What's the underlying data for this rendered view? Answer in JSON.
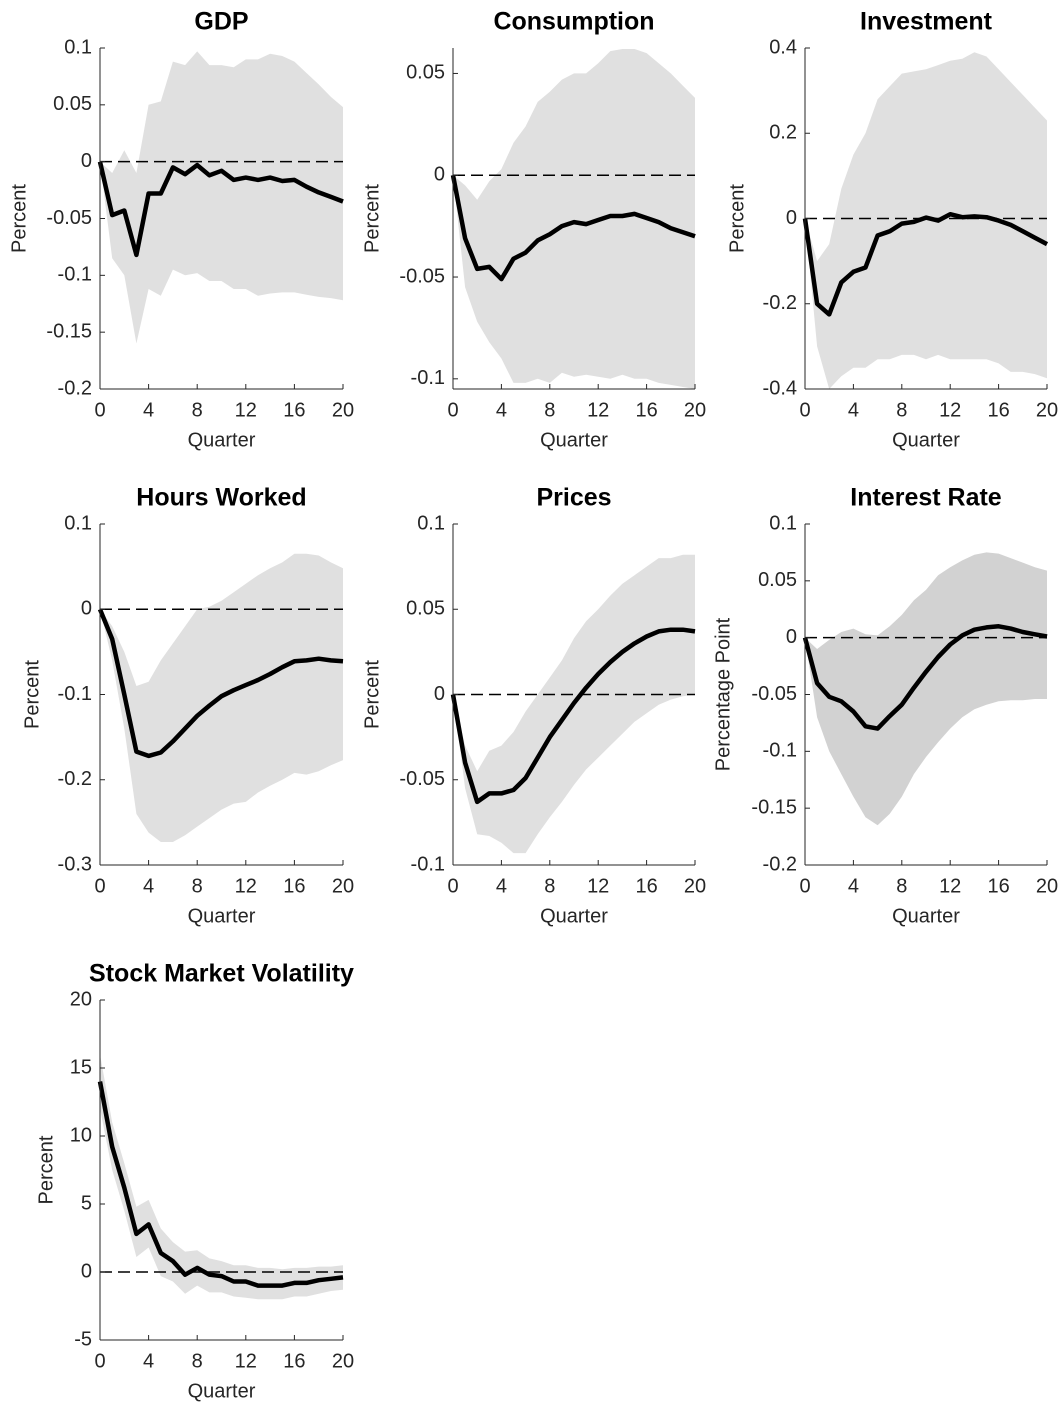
{
  "chart_data": [
    {
      "type": "line",
      "title": "GDP",
      "xlabel": "Quarter",
      "ylabel": "Percent",
      "x": [
        0,
        1,
        2,
        3,
        4,
        5,
        6,
        7,
        8,
        9,
        10,
        11,
        12,
        13,
        14,
        15,
        16,
        17,
        18,
        19,
        20
      ],
      "values": [
        0,
        -0.047,
        -0.043,
        -0.082,
        -0.028,
        -0.028,
        -0.005,
        -0.011,
        -0.003,
        -0.012,
        -0.008,
        -0.016,
        -0.014,
        -0.016,
        -0.014,
        -0.017,
        -0.016,
        -0.022,
        -0.027,
        -0.031,
        -0.035
      ],
      "upper": [
        0,
        -0.01,
        0.01,
        -0.01,
        0.05,
        0.053,
        0.088,
        0.085,
        0.097,
        0.085,
        0.085,
        0.083,
        0.09,
        0.09,
        0.095,
        0.093,
        0.088,
        0.078,
        0.068,
        0.057,
        0.048
      ],
      "lower": [
        0,
        -0.085,
        -0.1,
        -0.16,
        -0.112,
        -0.118,
        -0.095,
        -0.1,
        -0.098,
        -0.105,
        -0.105,
        -0.112,
        -0.112,
        -0.118,
        -0.116,
        -0.115,
        -0.115,
        -0.117,
        -0.119,
        -0.12,
        -0.122
      ],
      "color": "#000000",
      "band_color": "#e0e0e0",
      "reference_line": 0,
      "xlim": [
        0,
        20
      ],
      "xticks": [
        0,
        4,
        8,
        12,
        16,
        20
      ],
      "ylim": [
        -0.2,
        0.1
      ],
      "yticks": [
        -0.2,
        -0.15,
        -0.1,
        -0.05,
        0,
        0.05,
        0.1
      ]
    },
    {
      "type": "line",
      "title": "Consumption",
      "xlabel": "Quarter",
      "ylabel": "Percent",
      "x": [
        0,
        1,
        2,
        3,
        4,
        5,
        6,
        7,
        8,
        9,
        10,
        11,
        12,
        13,
        14,
        15,
        16,
        17,
        18,
        19,
        20
      ],
      "values": [
        0,
        -0.031,
        -0.046,
        -0.045,
        -0.051,
        -0.041,
        -0.038,
        -0.032,
        -0.029,
        -0.025,
        -0.023,
        -0.024,
        -0.022,
        -0.02,
        -0.02,
        -0.019,
        -0.021,
        -0.023,
        -0.026,
        -0.028,
        -0.03
      ],
      "upper": [
        0,
        -0.005,
        -0.012,
        -0.003,
        0.003,
        0.016,
        0.024,
        0.036,
        0.041,
        0.047,
        0.05,
        0.05,
        0.055,
        0.061,
        0.062,
        0.062,
        0.06,
        0.055,
        0.05,
        0.044,
        0.038
      ],
      "lower": [
        0,
        -0.055,
        -0.072,
        -0.082,
        -0.09,
        -0.102,
        -0.102,
        -0.1,
        -0.102,
        -0.097,
        -0.099,
        -0.098,
        -0.099,
        -0.1,
        -0.098,
        -0.1,
        -0.1,
        -0.102,
        -0.103,
        -0.104,
        -0.105
      ],
      "color": "#000000",
      "band_color": "#e0e0e0",
      "reference_line": 0,
      "xlim": [
        0,
        20
      ],
      "xticks": [
        0,
        4,
        8,
        12,
        16,
        20
      ],
      "ylim": [
        -0.105,
        0.0625
      ],
      "yticks": [
        -0.1,
        -0.05,
        0,
        0.05
      ]
    },
    {
      "type": "line",
      "title": "Investment",
      "xlabel": "Quarter",
      "ylabel": "Percent",
      "x": [
        0,
        1,
        2,
        3,
        4,
        5,
        6,
        7,
        8,
        9,
        10,
        11,
        12,
        13,
        14,
        15,
        16,
        17,
        18,
        19,
        20
      ],
      "values": [
        0,
        -0.2,
        -0.225,
        -0.15,
        -0.125,
        -0.115,
        -0.04,
        -0.03,
        -0.012,
        -0.008,
        0.002,
        -0.005,
        0.01,
        0.003,
        0.005,
        0.003,
        -0.005,
        -0.015,
        -0.03,
        -0.045,
        -0.06
      ],
      "upper": [
        0,
        -0.1,
        -0.06,
        0.07,
        0.15,
        0.2,
        0.28,
        0.31,
        0.34,
        0.345,
        0.35,
        0.36,
        0.37,
        0.375,
        0.39,
        0.38,
        0.35,
        0.32,
        0.29,
        0.26,
        0.23
      ],
      "lower": [
        0,
        -0.3,
        -0.4,
        -0.37,
        -0.35,
        -0.35,
        -0.33,
        -0.33,
        -0.32,
        -0.32,
        -0.33,
        -0.32,
        -0.33,
        -0.33,
        -0.33,
        -0.33,
        -0.34,
        -0.36,
        -0.36,
        -0.365,
        -0.375
      ],
      "color": "#000000",
      "band_color": "#e0e0e0",
      "reference_line": 0,
      "xlim": [
        0,
        20
      ],
      "xticks": [
        0,
        4,
        8,
        12,
        16,
        20
      ],
      "ylim": [
        -0.4,
        0.4
      ],
      "yticks": [
        -0.4,
        -0.2,
        0,
        0.2,
        0.4
      ]
    },
    {
      "type": "line",
      "title": "Hours Worked",
      "xlabel": "Quarter",
      "ylabel": "Percent",
      "x": [
        0,
        1,
        2,
        3,
        4,
        5,
        6,
        7,
        8,
        9,
        10,
        11,
        12,
        13,
        14,
        15,
        16,
        17,
        18,
        19,
        20
      ],
      "values": [
        0,
        -0.035,
        -0.1,
        -0.167,
        -0.172,
        -0.168,
        -0.155,
        -0.14,
        -0.125,
        -0.113,
        -0.102,
        -0.095,
        -0.089,
        -0.083,
        -0.076,
        -0.068,
        -0.061,
        -0.06,
        -0.058,
        -0.06,
        -0.061
      ],
      "upper": [
        0,
        -0.02,
        -0.05,
        -0.09,
        -0.085,
        -0.06,
        -0.04,
        -0.02,
        0,
        0.003,
        0.01,
        0.02,
        0.03,
        0.04,
        0.048,
        0.055,
        0.065,
        0.065,
        0.063,
        0.055,
        0.048
      ],
      "lower": [
        0,
        -0.06,
        -0.14,
        -0.24,
        -0.262,
        -0.273,
        -0.273,
        -0.265,
        -0.255,
        -0.245,
        -0.235,
        -0.228,
        -0.226,
        -0.215,
        -0.207,
        -0.2,
        -0.192,
        -0.194,
        -0.19,
        -0.183,
        -0.177
      ],
      "color": "#000000",
      "band_color": "#e0e0e0",
      "reference_line": 0,
      "xlim": [
        0,
        20
      ],
      "xticks": [
        0,
        4,
        8,
        12,
        16,
        20
      ],
      "ylim": [
        -0.3,
        0.1
      ],
      "yticks": [
        -0.3,
        -0.2,
        -0.1,
        0,
        0.1
      ]
    },
    {
      "type": "line",
      "title": "Prices",
      "xlabel": "Quarter",
      "ylabel": "Percent",
      "x": [
        0,
        1,
        2,
        3,
        4,
        5,
        6,
        7,
        8,
        9,
        10,
        11,
        12,
        13,
        14,
        15,
        16,
        17,
        18,
        19,
        20
      ],
      "values": [
        0,
        -0.04,
        -0.063,
        -0.058,
        -0.058,
        -0.056,
        -0.049,
        -0.037,
        -0.025,
        -0.015,
        -0.005,
        0.004,
        0.012,
        0.019,
        0.025,
        0.03,
        0.034,
        0.037,
        0.038,
        0.038,
        0.037
      ],
      "upper": [
        0,
        -0.03,
        -0.045,
        -0.033,
        -0.03,
        -0.022,
        -0.01,
        0,
        0.01,
        0.02,
        0.033,
        0.043,
        0.05,
        0.058,
        0.065,
        0.07,
        0.075,
        0.08,
        0.08,
        0.082,
        0.082
      ],
      "lower": [
        0,
        -0.055,
        -0.082,
        -0.083,
        -0.087,
        -0.093,
        -0.093,
        -0.082,
        -0.072,
        -0.063,
        -0.053,
        -0.044,
        -0.037,
        -0.03,
        -0.023,
        -0.016,
        -0.011,
        -0.006,
        -0.003,
        -0.001,
        0
      ],
      "color": "#000000",
      "band_color": "#e0e0e0",
      "reference_line": 0,
      "xlim": [
        0,
        20
      ],
      "xticks": [
        0,
        4,
        8,
        12,
        16,
        20
      ],
      "ylim": [
        -0.1,
        0.1
      ],
      "yticks": [
        -0.1,
        -0.05,
        0,
        0.05,
        0.1
      ]
    },
    {
      "type": "line",
      "title": "Interest Rate",
      "xlabel": "Quarter",
      "ylabel": "Percentage Point",
      "x": [
        0,
        1,
        2,
        3,
        4,
        5,
        6,
        7,
        8,
        9,
        10,
        11,
        12,
        13,
        14,
        15,
        16,
        17,
        18,
        19,
        20
      ],
      "values": [
        0,
        -0.04,
        -0.052,
        -0.056,
        -0.065,
        -0.078,
        -0.08,
        -0.069,
        -0.059,
        -0.044,
        -0.03,
        -0.017,
        -0.006,
        0.002,
        0.007,
        0.009,
        0.01,
        0.008,
        0.005,
        0.003,
        0.001
      ],
      "upper": [
        0,
        -0.01,
        -0.002,
        0.005,
        0.008,
        0.003,
        0.002,
        0.01,
        0.02,
        0.033,
        0.042,
        0.055,
        0.062,
        0.068,
        0.073,
        0.075,
        0.074,
        0.07,
        0.066,
        0.062,
        0.059
      ],
      "lower": [
        0,
        -0.07,
        -0.1,
        -0.12,
        -0.14,
        -0.158,
        -0.165,
        -0.155,
        -0.14,
        -0.12,
        -0.105,
        -0.092,
        -0.08,
        -0.07,
        -0.063,
        -0.059,
        -0.056,
        -0.055,
        -0.055,
        -0.054,
        -0.054
      ],
      "color": "#000000",
      "band_color": "#d2d2d2",
      "reference_line": 0,
      "xlim": [
        0,
        20
      ],
      "xticks": [
        0,
        4,
        8,
        12,
        16,
        20
      ],
      "ylim": [
        -0.2,
        0.1
      ],
      "yticks": [
        -0.2,
        -0.15,
        -0.1,
        -0.05,
        0,
        0.05,
        0.1
      ]
    },
    {
      "type": "line",
      "title": "Stock Market Volatility",
      "xlabel": "Quarter",
      "ylabel": "Percent",
      "x": [
        0,
        1,
        2,
        3,
        4,
        5,
        6,
        7,
        8,
        9,
        10,
        11,
        12,
        13,
        14,
        15,
        16,
        17,
        18,
        19,
        20
      ],
      "values": [
        14,
        9.2,
        6.2,
        2.8,
        3.5,
        1.4,
        0.8,
        -0.2,
        0.3,
        -0.2,
        -0.3,
        -0.7,
        -0.7,
        -1.0,
        -1.0,
        -1.0,
        -0.8,
        -0.8,
        -0.6,
        -0.5,
        -0.4
      ],
      "upper": [
        16,
        11,
        8,
        4.8,
        5.3,
        3.2,
        2.2,
        1.5,
        1.6,
        1.0,
        0.8,
        0.5,
        0.5,
        0.3,
        0.3,
        0.2,
        0.3,
        0.3,
        0.4,
        0.4,
        0.5
      ],
      "lower": [
        12,
        7.5,
        4.5,
        1.1,
        1.8,
        -0.3,
        -0.7,
        -1.6,
        -1.0,
        -1.5,
        -1.5,
        -1.8,
        -1.9,
        -2.0,
        -2.0,
        -2.0,
        -1.8,
        -1.8,
        -1.6,
        -1.4,
        -1.3
      ],
      "color": "#000000",
      "band_color": "#e0e0e0",
      "reference_line": 0,
      "xlim": [
        0,
        20
      ],
      "xticks": [
        0,
        4,
        8,
        12,
        16,
        20
      ],
      "ylim": [
        -5,
        20
      ],
      "yticks": [
        -5,
        0,
        5,
        10,
        15,
        20
      ]
    }
  ]
}
